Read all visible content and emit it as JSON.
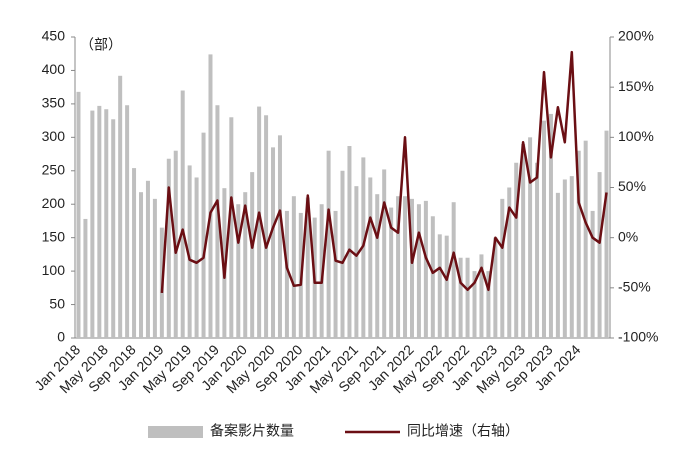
{
  "chart_data": {
    "type": "bar+line",
    "annotation": "（部）",
    "categories": [
      "Jan 2018",
      null,
      null,
      null,
      "May 2018",
      null,
      null,
      null,
      "Sep 2018",
      null,
      null,
      null,
      "Jan 2019",
      null,
      null,
      null,
      "May 2019",
      null,
      null,
      null,
      "Sep 2019",
      null,
      null,
      null,
      "Jan 2020",
      null,
      null,
      null,
      "May 2020",
      null,
      null,
      null,
      "Sep 2020",
      null,
      null,
      null,
      "Jan 2021",
      null,
      null,
      null,
      "May 2021",
      null,
      null,
      null,
      "Sep 2021",
      null,
      null,
      null,
      "Jan 2022",
      null,
      null,
      null,
      "May 2022",
      null,
      null,
      null,
      "Sep 2022",
      null,
      null,
      null,
      "Jan 2023",
      null,
      null,
      null,
      "May 2023",
      null,
      null,
      null,
      "Sep 2023",
      null,
      null,
      null,
      "Jan 2024",
      null,
      null,
      null,
      null
    ],
    "series": [
      {
        "name": "备案影片数量",
        "color": "#bfbfbf",
        "values": [
          368,
          178,
          340,
          347,
          342,
          327,
          392,
          348,
          254,
          218,
          235,
          208,
          165,
          268,
          280,
          370,
          258,
          240,
          307,
          424,
          348,
          224,
          330,
          200,
          218,
          248,
          346,
          333,
          285,
          303,
          190,
          212,
          187,
          210,
          180,
          200,
          280,
          190,
          250,
          287,
          227,
          270,
          240,
          215,
          252,
          195,
          212,
          212,
          208,
          200,
          205,
          182,
          155,
          153,
          203,
          120,
          120,
          100,
          125,
          100,
          150,
          208,
          225,
          262,
          290,
          300,
          262,
          325,
          335,
          217,
          237,
          242,
          280,
          295,
          190,
          248,
          310
        ]
      },
      {
        "name": "同比增速（右轴）",
        "color": "#6b0f14",
        "axis": "y2",
        "values": [
          null,
          null,
          null,
          null,
          null,
          null,
          null,
          null,
          null,
          null,
          null,
          null,
          -55,
          50,
          -15,
          8,
          -22,
          -25,
          -20,
          25,
          37,
          -40,
          40,
          -5,
          32,
          -10,
          25,
          -10,
          10,
          27,
          -30,
          -48,
          -47,
          42,
          -45,
          -45,
          28,
          -23,
          -25,
          -12,
          -18,
          -8,
          20,
          0,
          35,
          10,
          5,
          100,
          -25,
          5,
          -20,
          -35,
          -30,
          -42,
          -15,
          -45,
          -52,
          -45,
          -30,
          -52,
          0,
          -10,
          30,
          20,
          95,
          55,
          60,
          165,
          80,
          130,
          95,
          185,
          35,
          15,
          0,
          -5,
          45
        ]
      }
    ],
    "ylim": [
      0,
      450
    ],
    "yticks": [
      0,
      50,
      100,
      150,
      200,
      250,
      300,
      350,
      400,
      450
    ],
    "y2lim": [
      -100,
      200
    ],
    "y2ticks": [
      {
        "value": -100,
        "label": "-100%"
      },
      {
        "value": -50,
        "label": "-50%"
      },
      {
        "value": 0,
        "label": "0%"
      },
      {
        "value": 50,
        "label": "50%"
      },
      {
        "value": 100,
        "label": "100%"
      },
      {
        "value": 150,
        "label": "150%"
      },
      {
        "value": 200,
        "label": "200%"
      }
    ]
  }
}
